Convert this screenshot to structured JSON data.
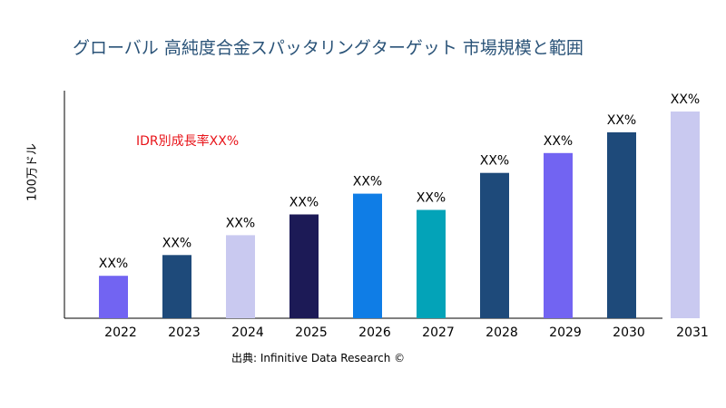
{
  "chart_data": {
    "type": "bar",
    "title": "グローバル 高純度合金スパッタリングターゲット 市場規模と範囲",
    "ylabel": "100万ドル",
    "xlabel": "",
    "categories": [
      "2022",
      "2023",
      "2024",
      "2025",
      "2026",
      "2027",
      "2028",
      "2029",
      "2030",
      "2031"
    ],
    "values": [
      47,
      70,
      92,
      115,
      138,
      120,
      161,
      183,
      206,
      229
    ],
    "data_labels": [
      "XX%",
      "XX%",
      "XX%",
      "XX%",
      "XX%",
      "XX%",
      "XX%",
      "XX%",
      "XX%",
      "XX%"
    ],
    "colors": [
      "#7264f2",
      "#1e4a7a",
      "#c9c9f0",
      "#1c1a56",
      "#0f7de6",
      "#03a3b8",
      "#1e4a7a",
      "#7264f2",
      "#1e4a7a",
      "#c9c9f0"
    ],
    "ylim": [
      0,
      230
    ],
    "grid": false,
    "annotation": "IDR別成長率XX%",
    "source": "出典: Infinitive Data Research ©"
  }
}
